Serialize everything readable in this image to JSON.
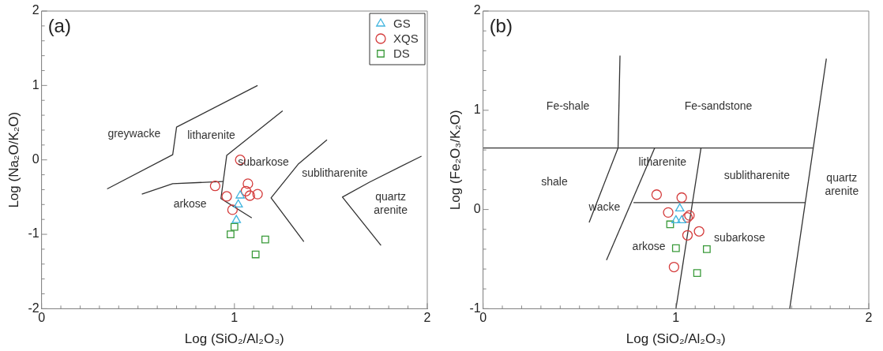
{
  "chart_data": [
    {
      "type": "scatter",
      "title": "(a)",
      "xlabel": "Log (SiO₂/Al₂O₃)",
      "ylabel": "Log (Na₂O/K₂O)",
      "xlim": [
        0,
        2
      ],
      "ylim": [
        -2,
        2
      ],
      "xticks": [
        0,
        {
          "value": 0.1,
          "label": null
        },
        {
          "value": 0.2,
          "label": null
        },
        {
          "value": 0.3,
          "label": null
        },
        {
          "value": 0.4,
          "label": null
        },
        {
          "value": 0.5,
          "label": null
        },
        {
          "value": 0.6,
          "label": null
        },
        {
          "value": 0.7,
          "label": null
        },
        {
          "value": 0.8,
          "label": null
        },
        {
          "value": 0.9,
          "label": null
        },
        1,
        {
          "value": 1.1,
          "label": null
        },
        {
          "value": 1.2,
          "label": null
        },
        {
          "value": 1.3,
          "label": null
        },
        {
          "value": 1.4,
          "label": null
        },
        {
          "value": 1.5,
          "label": null
        },
        {
          "value": 1.6,
          "label": null
        },
        {
          "value": 1.7,
          "label": null
        },
        {
          "value": 1.8,
          "label": null
        },
        {
          "value": 1.9,
          "label": null
        },
        2
      ],
      "yticks": [
        -2,
        {
          "value": -1.8,
          "label": null
        },
        {
          "value": -1.6,
          "label": null
        },
        {
          "value": -1.4,
          "label": null
        },
        {
          "value": -1.2,
          "label": null
        },
        -1,
        {
          "value": -0.8,
          "label": null
        },
        {
          "value": -0.6,
          "label": null
        },
        {
          "value": -0.4,
          "label": null
        },
        {
          "value": -0.2,
          "label": null
        },
        0,
        {
          "value": 0.2,
          "label": null
        },
        {
          "value": 0.4,
          "label": null
        },
        {
          "value": 0.6,
          "label": null
        },
        {
          "value": 0.8,
          "label": null
        },
        1,
        {
          "value": 1.2,
          "label": null
        },
        {
          "value": 1.4,
          "label": null
        },
        {
          "value": 1.6,
          "label": null
        },
        {
          "value": 1.8,
          "label": null
        },
        2
      ],
      "grid": false,
      "legend": "top right",
      "series": [
        {
          "name": "GS",
          "color": "#3fb4de",
          "marker": "triangle",
          "x": [
            1.03,
            1.02,
            1.01
          ],
          "values": [
            -0.48,
            -0.6,
            -0.81
          ]
        },
        {
          "name": "XQS",
          "color": "#d43c3c",
          "marker": "circle",
          "x": [
            1.03,
            0.9,
            0.96,
            0.99,
            1.07,
            1.06,
            1.08,
            1.12
          ],
          "values": [
            0.0,
            -0.35,
            -0.49,
            -0.67,
            -0.32,
            -0.42,
            -0.48,
            -0.46
          ]
        },
        {
          "name": "DS",
          "color": "#3a9a3a",
          "marker": "square",
          "x": [
            0.98,
            1.0,
            1.16,
            1.11
          ],
          "values": [
            -1.0,
            -0.9,
            -1.07,
            -1.27
          ]
        },
        {
          "type": "line",
          "color": "#333333",
          "marker": "none",
          "x": [
            0.34,
            0.68,
            0.7,
            1.12
          ],
          "values": [
            -0.39,
            0.07,
            0.44,
            1.0
          ]
        },
        {
          "type": "line",
          "color": "#333333",
          "marker": "none",
          "x": [
            0.52,
            0.68,
            0.94
          ],
          "values": [
            -0.46,
            -0.32,
            -0.29
          ]
        },
        {
          "type": "line",
          "color": "#333333",
          "marker": "none",
          "x": [
            1.25,
            0.96,
            0.93,
            1.09
          ],
          "values": [
            0.66,
            0.06,
            -0.52,
            -0.78
          ]
        },
        {
          "type": "line",
          "color": "#333333",
          "marker": "none",
          "x": [
            1.48,
            1.33,
            1.19,
            1.36
          ],
          "values": [
            0.27,
            -0.06,
            -0.51,
            -1.1
          ]
        },
        {
          "type": "line",
          "color": "#333333",
          "marker": "none",
          "x": [
            1.97,
            1.7,
            1.56,
            1.76
          ],
          "values": [
            0.05,
            -0.3,
            -0.5,
            -1.15
          ]
        }
      ],
      "annotations": [
        "greywacke",
        "litharenite",
        "subarkose",
        "sublitharenite",
        "quartz\narenite",
        "arkose"
      ]
    },
    {
      "type": "scatter",
      "title": "(b)",
      "xlabel": "Log (SiO₂/Al₂O₃)",
      "ylabel": "Log (Fe₂O₃/K₂O)",
      "xlim": [
        0,
        2
      ],
      "ylim": [
        -1,
        2
      ],
      "xticks": [
        0,
        {
          "value": 0.1,
          "label": null
        },
        {
          "value": 0.2,
          "label": null
        },
        {
          "value": 0.3,
          "label": null
        },
        {
          "value": 0.4,
          "label": null
        },
        {
          "value": 0.5,
          "label": null
        },
        {
          "value": 0.6,
          "label": null
        },
        {
          "value": 0.7,
          "label": null
        },
        {
          "value": 0.8,
          "label": null
        },
        {
          "value": 0.9,
          "label": null
        },
        1,
        {
          "value": 1.1,
          "label": null
        },
        {
          "value": 1.2,
          "label": null
        },
        {
          "value": 1.3,
          "label": null
        },
        {
          "value": 1.4,
          "label": null
        },
        {
          "value": 1.5,
          "label": null
        },
        {
          "value": 1.6,
          "label": null
        },
        {
          "value": 1.7,
          "label": null
        },
        {
          "value": 1.8,
          "label": null
        },
        {
          "value": 1.9,
          "label": null
        },
        2
      ],
      "yticks": [
        -1,
        {
          "value": -0.8,
          "label": null
        },
        {
          "value": -0.6,
          "label": null
        },
        {
          "value": -0.4,
          "label": null
        },
        {
          "value": -0.2,
          "label": null
        },
        0,
        {
          "value": 0.2,
          "label": null
        },
        {
          "value": 0.4,
          "label": null
        },
        {
          "value": 0.6,
          "label": null
        },
        {
          "value": 0.8,
          "label": null
        },
        1,
        {
          "value": 1.2,
          "label": null
        },
        {
          "value": 1.4,
          "label": null
        },
        {
          "value": 1.6,
          "label": null
        },
        {
          "value": 1.8,
          "label": null
        },
        2
      ],
      "grid": false,
      "series": [
        {
          "color": "#3fb4de",
          "marker": "triangle",
          "x": [
            1.02,
            1.0,
            1.03
          ],
          "values": [
            0.01,
            -0.11,
            -0.11
          ]
        },
        {
          "color": "#d43c3c",
          "marker": "circle",
          "x": [
            0.9,
            1.03,
            0.96,
            1.07,
            1.06,
            1.12,
            1.06,
            0.99
          ],
          "values": [
            0.15,
            0.12,
            -0.03,
            -0.06,
            -0.08,
            -0.22,
            -0.26,
            -0.58
          ]
        },
        {
          "color": "#3a9a3a",
          "marker": "square",
          "x": [
            0.97,
            1.0,
            1.16,
            1.11
          ],
          "values": [
            -0.15,
            -0.39,
            -0.4,
            -0.64
          ]
        },
        {
          "type": "line",
          "color": "#333333",
          "marker": "none",
          "x": [
            0.0,
            1.71
          ],
          "values": [
            0.62,
            0.62
          ]
        },
        {
          "type": "line",
          "color": "#333333",
          "marker": "none",
          "x": [
            0.71,
            0.7,
            0.55
          ],
          "values": [
            1.55,
            0.62,
            -0.13
          ]
        },
        {
          "type": "line",
          "color": "#333333",
          "marker": "none",
          "x": [
            0.89,
            0.64
          ],
          "values": [
            0.62,
            -0.51
          ]
        },
        {
          "type": "line",
          "color": "#333333",
          "marker": "none",
          "x": [
            1.13,
            1.0
          ],
          "values": [
            0.62,
            -1.0
          ]
        },
        {
          "type": "line",
          "color": "#333333",
          "marker": "none",
          "x": [
            0.78,
            1.67
          ],
          "values": [
            0.07,
            0.07
          ]
        },
        {
          "type": "line",
          "color": "#333333",
          "marker": "none",
          "x": [
            1.78,
            1.59
          ],
          "values": [
            1.52,
            -1.0
          ]
        }
      ],
      "annotations": [
        "Fe-shale",
        "Fe-sandstone",
        "litharenite",
        "shale",
        "sublitharenite",
        "quartz\narenite",
        "wacke",
        "arkose",
        "subarkose"
      ]
    }
  ]
}
